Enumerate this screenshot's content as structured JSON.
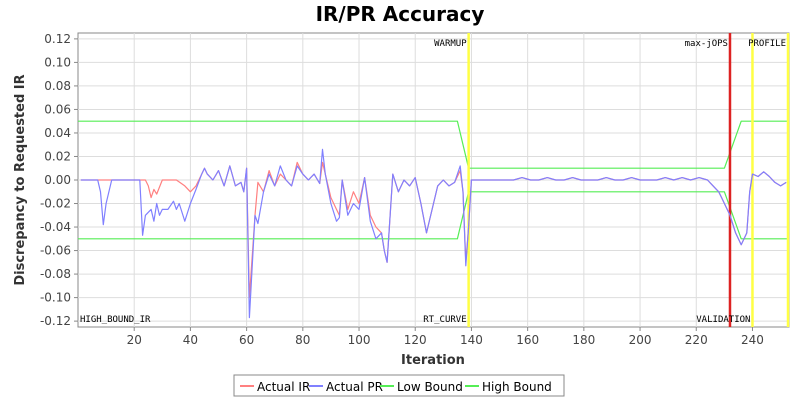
{
  "chart_data": {
    "type": "line",
    "title": "IR/PR Accuracy",
    "xlabel": "Iteration",
    "ylabel": "Discrepancy to Requested IR",
    "xlim": [
      0,
      253
    ],
    "ylim": [
      -0.125,
      0.125
    ],
    "x_ticks": [
      20,
      40,
      60,
      80,
      100,
      120,
      140,
      160,
      180,
      200,
      220,
      240
    ],
    "y_ticks": [
      -0.12,
      -0.1,
      -0.08,
      -0.06,
      -0.04,
      -0.02,
      0.0,
      0.02,
      0.04,
      0.06,
      0.08,
      0.1,
      0.12
    ],
    "y_tick_labels": [
      "-0.12",
      "-0.10",
      "-0.08",
      "-0.06",
      "-0.04",
      "-0.02",
      "0.00",
      "0.02",
      "0.04",
      "0.06",
      "0.08",
      "0.10",
      "0.12"
    ],
    "grid": true,
    "legend_position": "bottom",
    "series": [
      {
        "name": "Actual IR",
        "color": "#ff8080",
        "x": [
          1,
          22,
          24,
          25,
          26,
          27,
          28,
          30,
          32,
          35,
          38,
          40,
          42,
          44,
          45,
          46,
          48,
          50,
          52,
          54,
          56,
          58,
          59,
          60,
          61,
          63,
          64,
          66,
          68,
          70,
          72,
          74,
          76,
          78,
          80,
          82,
          84,
          86,
          87,
          88,
          90,
          92,
          93,
          94,
          96,
          98,
          100,
          102,
          104,
          106,
          108,
          109,
          110,
          112,
          114,
          116,
          118,
          120,
          122,
          124,
          126,
          128,
          130,
          132,
          134,
          136,
          137,
          138,
          139,
          140,
          143,
          146,
          149,
          152,
          155,
          158,
          161,
          164,
          167,
          170,
          173,
          176,
          179,
          182,
          185,
          188,
          191,
          194,
          197,
          200,
          203,
          206,
          209,
          212,
          215,
          218,
          221,
          224,
          226,
          228,
          229,
          230,
          231,
          232,
          234,
          236,
          238,
          239,
          240,
          242,
          244,
          246,
          248,
          250,
          252
        ],
        "y": [
          0,
          0,
          0,
          -0.005,
          -0.015,
          -0.008,
          -0.012,
          0,
          0,
          0,
          -0.005,
          -0.01,
          -0.005,
          0.005,
          0.01,
          0.005,
          0,
          0.008,
          -0.005,
          0.012,
          -0.005,
          -0.002,
          -0.01,
          0.01,
          -0.1,
          -0.03,
          -0.002,
          -0.01,
          0.008,
          -0.005,
          0.005,
          0,
          -0.005,
          0.015,
          0.005,
          0,
          0.005,
          -0.003,
          0.015,
          0.005,
          -0.015,
          -0.025,
          -0.03,
          0,
          -0.025,
          -0.01,
          -0.02,
          0.002,
          -0.03,
          -0.04,
          -0.045,
          -0.06,
          -0.07,
          0.005,
          -0.01,
          0,
          -0.005,
          0.002,
          -0.02,
          -0.045,
          -0.025,
          -0.005,
          0,
          -0.005,
          -0.002,
          0.008,
          -0.01,
          -0.07,
          -0.04,
          0,
          0,
          0,
          0,
          0,
          0,
          0.002,
          0,
          0,
          0.002,
          0,
          0,
          0.002,
          0,
          0,
          0,
          0.002,
          0,
          0,
          0.002,
          0,
          0,
          0,
          0.002,
          0,
          0.002,
          0,
          0.002,
          0,
          -0.005,
          -0.01,
          -0.015,
          -0.02,
          -0.025,
          -0.03,
          -0.045,
          -0.055,
          -0.045,
          -0.01,
          0.005,
          0.003,
          0.007,
          0.003,
          -0.002,
          -0.005,
          -0.002
        ]
      },
      {
        "name": "Actual PR",
        "color": "#8080ff",
        "x": [
          1,
          7,
          8,
          9,
          10,
          12,
          22,
          23,
          24,
          26,
          27,
          28,
          29,
          30,
          32,
          34,
          35,
          36,
          38,
          40,
          42,
          44,
          45,
          46,
          48,
          50,
          52,
          54,
          56,
          58,
          59,
          60,
          61,
          63,
          64,
          66,
          68,
          70,
          72,
          74,
          76,
          78,
          80,
          82,
          84,
          86,
          87,
          88,
          90,
          92,
          93,
          94,
          96,
          98,
          100,
          102,
          104,
          106,
          108,
          109,
          110,
          112,
          114,
          116,
          118,
          120,
          122,
          124,
          126,
          128,
          130,
          132,
          134,
          136,
          137,
          138,
          139,
          140,
          143,
          146,
          149,
          152,
          155,
          158,
          161,
          164,
          167,
          170,
          173,
          176,
          179,
          182,
          185,
          188,
          191,
          194,
          197,
          200,
          203,
          206,
          209,
          212,
          215,
          218,
          221,
          224,
          226,
          228,
          229,
          230,
          231,
          232,
          234,
          236,
          238,
          239,
          240,
          242,
          244,
          246,
          248,
          250,
          252
        ],
        "y": [
          0,
          0,
          -0.01,
          -0.038,
          -0.02,
          0,
          0,
          -0.047,
          -0.03,
          -0.025,
          -0.035,
          -0.02,
          -0.03,
          -0.025,
          -0.025,
          -0.018,
          -0.025,
          -0.02,
          -0.035,
          -0.02,
          -0.008,
          0.005,
          0.01,
          0.005,
          0,
          0.008,
          -0.005,
          0.012,
          -0.005,
          -0.002,
          -0.01,
          0.01,
          -0.117,
          -0.03,
          -0.037,
          -0.01,
          0.005,
          -0.005,
          0.012,
          0,
          -0.005,
          0.012,
          0.005,
          0,
          0.005,
          -0.003,
          0.026,
          0.005,
          -0.02,
          -0.035,
          -0.032,
          0,
          -0.03,
          -0.02,
          -0.025,
          0.002,
          -0.035,
          -0.05,
          -0.045,
          -0.06,
          -0.07,
          0.005,
          -0.01,
          0,
          -0.005,
          0.002,
          -0.02,
          -0.045,
          -0.025,
          -0.005,
          0,
          -0.005,
          -0.002,
          0.012,
          -0.01,
          -0.073,
          -0.04,
          0,
          0,
          0,
          0,
          0,
          0,
          0.002,
          0,
          0,
          0.002,
          0,
          0,
          0.002,
          0,
          0,
          0,
          0.002,
          0,
          0,
          0.002,
          0,
          0,
          0,
          0.002,
          0,
          0.002,
          0,
          0.002,
          0,
          -0.005,
          -0.01,
          -0.015,
          -0.02,
          -0.025,
          -0.03,
          -0.045,
          -0.055,
          -0.045,
          -0.01,
          0.005,
          0.003,
          0.007,
          0.003,
          -0.002,
          -0.005,
          -0.002
        ]
      },
      {
        "name": "Low Bound",
        "color": "#55ee55",
        "x": [
          0,
          135,
          139,
          230,
          236,
          253
        ],
        "y": [
          -0.05,
          -0.05,
          -0.01,
          -0.01,
          -0.05,
          -0.05
        ]
      },
      {
        "name": "High Bound",
        "color": "#55ee55",
        "x": [
          0,
          135,
          139,
          230,
          236,
          253
        ],
        "y": [
          0.05,
          0.05,
          0.01,
          0.01,
          0.05,
          0.05
        ]
      }
    ],
    "markers": [
      {
        "x": 139,
        "label": "WARMUP",
        "color": "#ffff44",
        "label_pos": "top"
      },
      {
        "x": 139,
        "label": "RT_CURVE",
        "color": "#ffff44",
        "label_pos": "bottom"
      },
      {
        "x": 232,
        "label": "max-jOPS",
        "color": "#dd2222",
        "label_pos": "top"
      },
      {
        "x": 240,
        "label": "VALIDATION",
        "color": "#ffff44",
        "label_pos": "bottom"
      },
      {
        "x": 253,
        "label": "PROFILE",
        "color": "#ffff44",
        "label_pos": "top"
      }
    ],
    "corner_labels": [
      {
        "label": "HIGH_BOUND_IR",
        "position": "bottom-left"
      }
    ]
  }
}
